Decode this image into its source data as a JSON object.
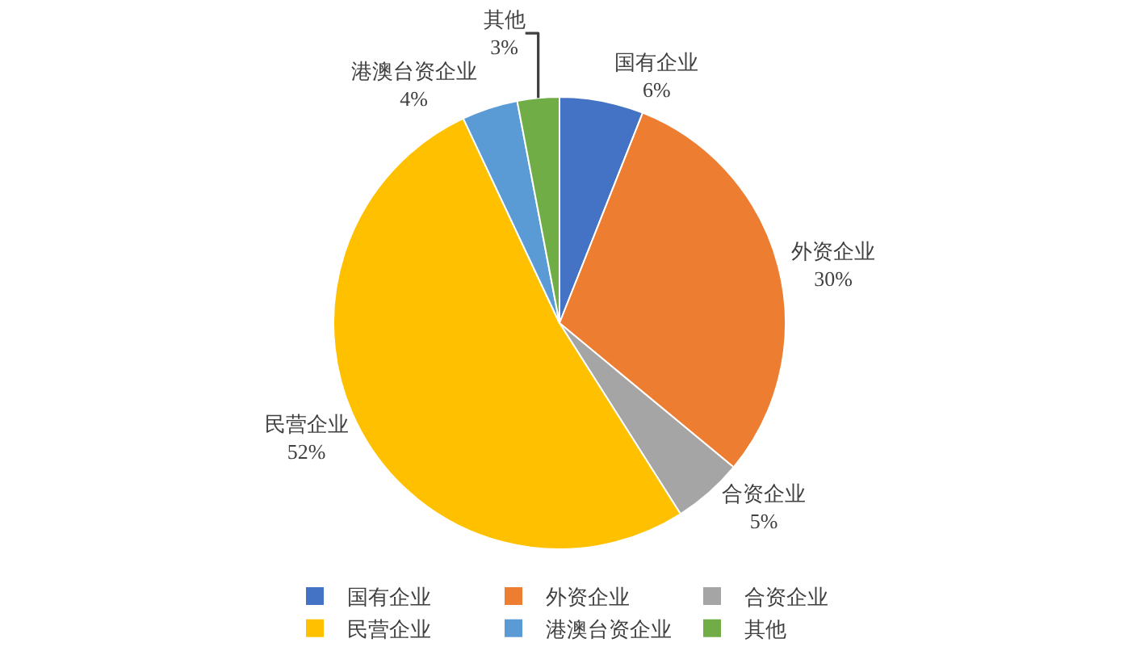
{
  "chart_data": {
    "type": "pie",
    "categories": [
      "国有企业",
      "外资企业",
      "合资企业",
      "民营企业",
      "港澳台资企业",
      "其他"
    ],
    "values": [
      6,
      30,
      5,
      52,
      4,
      3
    ],
    "value_labels": [
      "6%",
      "30%",
      "5%",
      "52%",
      "4%",
      "3%"
    ],
    "colors": [
      "#4472c4",
      "#ed7d31",
      "#a5a5a5",
      "#ffc000",
      "#5b9bd5",
      "#70ad47"
    ],
    "legend": "bottom"
  }
}
